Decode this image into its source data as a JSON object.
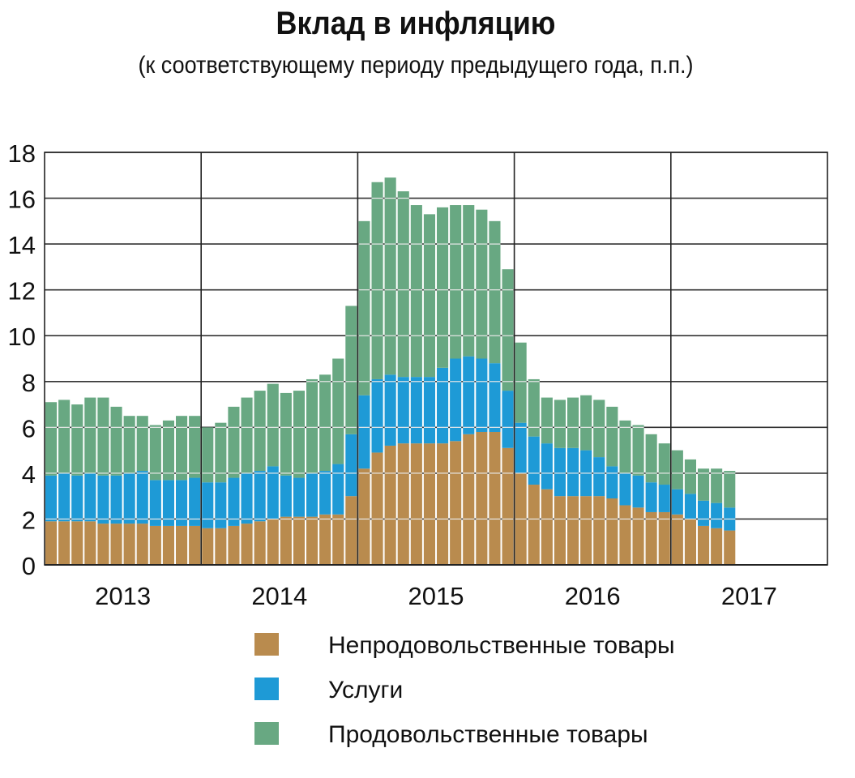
{
  "chart_data": {
    "type": "bar",
    "stacked": true,
    "title": "Вклад в инфляцию",
    "subtitle": "(к соответствующему периоду предыдущего года, п.п.)",
    "xlabel": "",
    "ylabel": "",
    "ylim": [
      0,
      18
    ],
    "yticks": [
      "0",
      "2",
      "4",
      "6",
      "8",
      "10",
      "12",
      "14",
      "16",
      "18"
    ],
    "grid": true,
    "legend_position": "bottom",
    "years": [
      "2013",
      "2014",
      "2015",
      "2016",
      "2017"
    ],
    "months_per_year": 12,
    "series": [
      {
        "name": "Непродовольственные товары",
        "color": "#b98b4e",
        "values": [
          1.9,
          1.9,
          1.9,
          1.9,
          1.8,
          1.8,
          1.8,
          1.8,
          1.7,
          1.7,
          1.7,
          1.7,
          1.6,
          1.6,
          1.7,
          1.8,
          1.9,
          2.0,
          2.1,
          2.1,
          2.1,
          2.2,
          2.2,
          3.0,
          4.2,
          4.9,
          5.2,
          5.3,
          5.3,
          5.3,
          5.3,
          5.4,
          5.7,
          5.8,
          5.8,
          5.1,
          4.0,
          3.5,
          3.3,
          3.0,
          3.0,
          3.0,
          3.0,
          2.9,
          2.6,
          2.5,
          2.3,
          2.3,
          2.2,
          2.0,
          1.7,
          1.6,
          1.5
        ]
      },
      {
        "name": "Услуги",
        "color": "#1e9ad6",
        "values": [
          2.0,
          2.1,
          2.0,
          2.1,
          2.1,
          2.1,
          2.2,
          2.3,
          2.0,
          2.0,
          2.0,
          2.1,
          2.0,
          2.0,
          2.1,
          2.2,
          2.2,
          2.3,
          1.8,
          1.7,
          1.9,
          1.9,
          2.2,
          2.7,
          3.2,
          3.2,
          3.1,
          2.9,
          2.9,
          2.9,
          3.3,
          3.6,
          3.4,
          3.2,
          3.0,
          2.5,
          2.2,
          2.1,
          2.0,
          2.1,
          2.1,
          2.0,
          1.7,
          1.4,
          1.4,
          1.4,
          1.3,
          1.2,
          1.1,
          1.1,
          1.1,
          1.1,
          1.0
        ]
      },
      {
        "name": "Продовольственные товары",
        "color": "#68a882",
        "values": [
          3.2,
          3.2,
          3.1,
          3.3,
          3.4,
          3.0,
          2.5,
          2.4,
          2.4,
          2.6,
          2.8,
          2.7,
          2.4,
          2.6,
          3.1,
          3.3,
          3.5,
          3.6,
          3.6,
          3.8,
          4.1,
          4.2,
          4.6,
          5.6,
          7.6,
          8.6,
          8.6,
          8.1,
          7.5,
          7.1,
          7.0,
          6.7,
          6.6,
          6.5,
          6.2,
          5.3,
          3.5,
          2.5,
          2.0,
          2.1,
          2.2,
          2.4,
          2.5,
          2.6,
          2.3,
          2.2,
          2.1,
          1.8,
          1.7,
          1.5,
          1.4,
          1.5,
          1.6
        ]
      }
    ]
  }
}
